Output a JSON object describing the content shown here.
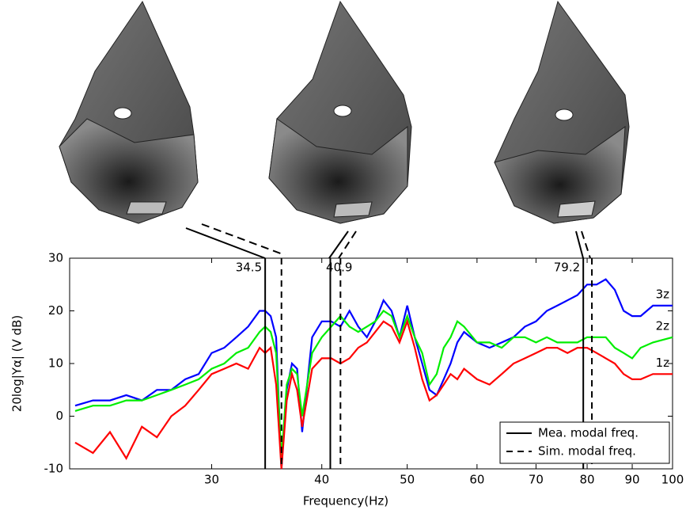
{
  "chart_data": {
    "type": "line",
    "x_label": "Frequency(Hz)",
    "y_label": "20log|Yα| (V dB)",
    "log_x": true,
    "xlim": [
      20.7,
      100
    ],
    "ylim": [
      -10,
      30
    ],
    "xticks": [
      30,
      40,
      50,
      60,
      70,
      80,
      90,
      100
    ],
    "yticks": [
      -10,
      0,
      10,
      20,
      30
    ],
    "x": [
      21,
      22,
      23,
      24,
      25,
      26,
      27,
      28,
      29,
      30,
      31,
      32,
      33,
      34,
      34.5,
      35,
      35.5,
      36,
      36.5,
      37,
      37.5,
      38,
      39,
      40,
      41,
      42,
      43,
      44,
      45,
      46,
      47,
      48,
      49,
      50,
      51,
      52,
      53,
      54,
      55,
      56,
      57,
      58,
      60,
      62,
      64,
      66,
      68,
      70,
      72,
      74,
      76,
      78,
      80,
      82,
      84,
      86,
      88,
      90,
      92,
      95,
      100
    ],
    "series": [
      {
        "name": "3z",
        "color": "#0000ff",
        "values": [
          2,
          3,
          3,
          4,
          3,
          5,
          5,
          7,
          8,
          12,
          13,
          15,
          17,
          20,
          20,
          19,
          15,
          -10,
          5,
          10,
          9,
          -3,
          15,
          18,
          18,
          17,
          20,
          17,
          15,
          18,
          22,
          20,
          15,
          21,
          15,
          10,
          5,
          4,
          7,
          10,
          14,
          16,
          14,
          13,
          14,
          15,
          17,
          18,
          20,
          21,
          22,
          23,
          25,
          25,
          26,
          24,
          20,
          19,
          19,
          21,
          21
        ]
      },
      {
        "name": "2z",
        "color": "#00ee00",
        "values": [
          1,
          2,
          2,
          3,
          3,
          4,
          5,
          6,
          7,
          9,
          10,
          12,
          13,
          16,
          17,
          16,
          12,
          -8,
          6,
          9,
          8,
          0,
          12,
          15,
          17,
          19,
          17,
          16,
          17,
          18,
          20,
          19,
          15,
          19,
          15,
          12,
          6,
          8,
          13,
          15,
          18,
          17,
          14,
          14,
          13,
          15,
          15,
          14,
          15,
          14,
          14,
          14,
          15,
          15,
          15,
          13,
          12,
          11,
          13,
          14,
          15
        ]
      },
      {
        "name": "1z",
        "color": "#ff0000",
        "values": [
          -5,
          -7,
          -3,
          -8,
          -2,
          -4,
          0,
          2,
          5,
          8,
          9,
          10,
          9,
          13,
          12,
          13,
          6,
          -10,
          3,
          8,
          5,
          -2,
          9,
          11,
          11,
          10,
          11,
          13,
          14,
          16,
          18,
          17,
          14,
          18,
          13,
          7,
          3,
          4,
          6,
          8,
          7,
          9,
          7,
          6,
          8,
          10,
          11,
          12,
          13,
          13,
          12,
          13,
          13,
          12,
          11,
          10,
          8,
          7,
          7,
          8,
          8
        ]
      }
    ],
    "measured_modes": {
      "name": "Mea. modal freq.",
      "values": [
        34.5,
        40.9,
        79.2
      ]
    },
    "simulated_modes": {
      "name": "Sim. modal freq.",
      "values": [
        36,
        42,
        81
      ]
    },
    "legend": "lower right"
  }
}
